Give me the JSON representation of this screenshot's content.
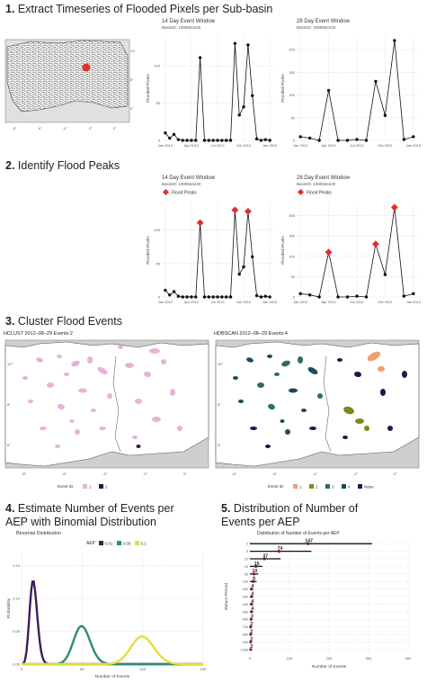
{
  "sections": [
    {
      "num": "1.",
      "title": "Extract Timeseries of Flooded Pixels per Sub-basin"
    },
    {
      "num": "2.",
      "title": "Identify Flood Peaks"
    },
    {
      "num": "3.",
      "title": "Cluster Flood Events"
    },
    {
      "num": "4.",
      "title_line1": "Estimate Number of Events per",
      "title_line2": "AEP with Binomial Distribution"
    },
    {
      "num": "5.",
      "title_line1": "Distribution of Number of",
      "title_line2": "Events per AEP"
    }
  ],
  "s1": {
    "map_ticks_x": [
      "-8°",
      "-6°",
      "-4°",
      "-2°",
      "0°"
    ],
    "map_ticks_y": [
      "10°",
      "8°",
      "6°"
    ]
  },
  "ts_x_ticks": [
    "Jan 2012",
    "Apr 2012",
    "Jul 2012",
    "Oct 2012",
    "Jan 2013"
  ],
  "ts_ylabel": "Flooded Pixels",
  "ts_basin": "BasinID: 1090654240",
  "chart_data": [
    {
      "type": "line",
      "title": "14 Day Event Window",
      "subtitle": "BasinID: 1090654240",
      "ylabel": "Flooded Pixels",
      "xlabel": "",
      "x_ticks": [
        "Jan 2012",
        "Apr 2012",
        "Jul 2012",
        "Oct 2012",
        "Jan 2013"
      ],
      "ylim": [
        0,
        140
      ],
      "y_ticks": [
        0,
        50,
        100
      ],
      "x": [
        0,
        0.5,
        1,
        1.5,
        2,
        2.5,
        3,
        3.5,
        4,
        4.5,
        5,
        5.5,
        6,
        6.5,
        7,
        7.5,
        8,
        8.5,
        9,
        9.5,
        10,
        10.5,
        11,
        11.5,
        12
      ],
      "values": [
        10,
        3,
        8,
        1,
        0,
        0,
        0,
        0,
        111,
        0,
        0,
        0,
        0,
        0,
        0,
        0,
        130,
        34,
        45,
        128,
        60,
        2,
        0,
        1,
        0
      ]
    },
    {
      "type": "line",
      "title": "28 Day Event Window",
      "subtitle": "BasinID: 1090654240",
      "ylabel": "Flooded Pixels",
      "xlabel": "",
      "x_ticks": [
        "Jan 2012",
        "Apr 2012",
        "Jul 2012",
        "Oct 2012",
        "Jan 2013"
      ],
      "ylim": [
        0,
        230
      ],
      "y_ticks": [
        0,
        50,
        100,
        150,
        200
      ],
      "x": [
        0,
        1,
        2,
        3,
        4,
        5,
        6,
        7,
        8,
        9,
        10,
        11,
        12
      ],
      "values": [
        8,
        5,
        0,
        110,
        0,
        0,
        2,
        0,
        130,
        55,
        220,
        2,
        8
      ]
    },
    {
      "type": "line",
      "title": "14 Day Event Window",
      "subtitle": "BasinID: 1090654240",
      "ylabel": "Flooded Pixels",
      "xlabel": "",
      "legend": "Flood Peaks",
      "peaks_x": [
        4,
        8,
        9.5
      ],
      "x_ticks": [
        "Jan 2012",
        "Apr 2012",
        "Jul 2012",
        "Oct 2012",
        "Jan 2013"
      ],
      "ylim": [
        0,
        140
      ],
      "y_ticks": [
        0,
        50,
        100
      ],
      "x": [
        0,
        0.5,
        1,
        1.5,
        2,
        2.5,
        3,
        3.5,
        4,
        4.5,
        5,
        5.5,
        6,
        6.5,
        7,
        7.5,
        8,
        8.5,
        9,
        9.5,
        10,
        10.5,
        11,
        11.5,
        12
      ],
      "values": [
        10,
        3,
        8,
        1,
        0,
        0,
        0,
        0,
        111,
        0,
        0,
        0,
        0,
        0,
        0,
        0,
        130,
        34,
        45,
        128,
        60,
        2,
        0,
        1,
        0
      ]
    },
    {
      "type": "line",
      "title": "28 Day Event Window",
      "subtitle": "BasinID: 1090654240",
      "ylabel": "Flooded Pixels",
      "xlabel": "",
      "legend": "Flood Peaks",
      "peaks_x": [
        3,
        8,
        10
      ],
      "x_ticks": [
        "Jan 2012",
        "Apr 2012",
        "Jul 2012",
        "Oct 2012",
        "Jan 2013"
      ],
      "ylim": [
        0,
        230
      ],
      "y_ticks": [
        0,
        50,
        100,
        150,
        200
      ],
      "x": [
        0,
        1,
        2,
        3,
        4,
        5,
        6,
        7,
        8,
        9,
        10,
        11,
        12
      ],
      "values": [
        8,
        5,
        0,
        110,
        0,
        0,
        2,
        0,
        130,
        55,
        220,
        2,
        8
      ]
    },
    {
      "type": "line",
      "title": "Binomial Distribution",
      "xlabel": "Number of Events",
      "ylabel": "Probability",
      "legend_title": "AEP",
      "legend": [
        "0.01",
        "0.05",
        "0.1"
      ],
      "xlim": [
        0,
        150
      ],
      "ylim": [
        0,
        0.17
      ],
      "x_ticks": [
        0,
        50,
        100,
        150
      ],
      "y_ticks": [
        0,
        0.05,
        0.1,
        0.15
      ],
      "series": [
        {
          "name": "0.01",
          "n": 1000,
          "p": 0.01,
          "color": "#3b1f5a"
        },
        {
          "name": "0.05",
          "n": 1000,
          "p": 0.05,
          "color": "#2e8b7a"
        },
        {
          "name": "0.1",
          "n": 1000,
          "p": 0.1,
          "color": "#e6dd3a"
        }
      ]
    },
    {
      "type": "bar",
      "title": "Distribution of Number of Events per AEP",
      "xlabel": "Number of Events",
      "ylabel": "Return Period",
      "categories": [
        "2",
        "5",
        "10",
        "20",
        "50",
        "100",
        "200",
        "300",
        "400",
        "500",
        "600",
        "700",
        "800",
        "900",
        "1000"
      ],
      "values": [
        147,
        74,
        37,
        15,
        10,
        8,
        4,
        4,
        4,
        4,
        3,
        2,
        2,
        2,
        2
      ],
      "labels": [
        "147",
        "74",
        "37",
        "15",
        "10",
        "8",
        "4",
        "4",
        "4",
        "4",
        "3",
        "2",
        "2",
        "2",
        "2"
      ],
      "xlim": [
        0,
        400
      ],
      "x_ticks": [
        0,
        100,
        200,
        300,
        400
      ]
    }
  ],
  "s3": {
    "hclust": {
      "title": "HCLUST  2012–08–29 Events:2",
      "legend_title": "Event ID",
      "legend": [
        "1",
        "2"
      ],
      "colors": [
        "#e6b3d8",
        "#1c1c4a"
      ]
    },
    "hdbscan": {
      "title": "HDBSCAN  2012–08–29 Events:4",
      "legend_title": "Event ID",
      "legend": [
        "1",
        "2",
        "3",
        "4",
        "Noise"
      ],
      "colors": [
        "#f0a070",
        "#7a8a20",
        "#2e6b63",
        "#1e4a5a",
        "#1c1c4a"
      ]
    },
    "map_ticks_x": [
      "-8°",
      "-6°",
      "-4°",
      "-2°",
      "0°"
    ],
    "map_ticks_y": [
      "10°",
      "8°",
      "6°"
    ]
  },
  "colors": {
    "peak": "#e0302a",
    "line": "#111111",
    "grid": "#d8d8d8",
    "land": "#ffffff",
    "ocean": "#cfcfcf"
  }
}
